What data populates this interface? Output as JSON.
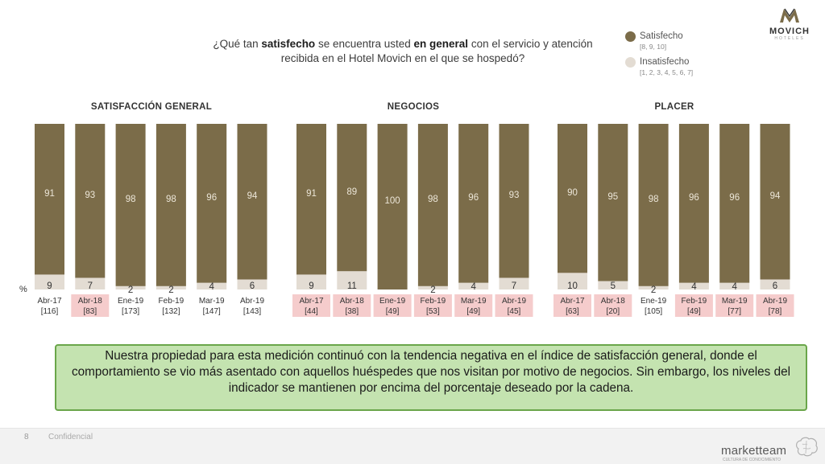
{
  "question": {
    "part1": "¿Qué tan ",
    "bold1": "satisfecho",
    "part2": " se encuentra usted ",
    "bold2": "en general",
    "part3": " con el servicio y atención recibida en el Hotel Movich en el que se hospedó?"
  },
  "legend": {
    "satisfied_label": "Satisfecho",
    "satisfied_range": "[8, 9, 10]",
    "unsatisfied_label": "Insatisfecho",
    "unsatisfied_range": "[1, 2, 3, 4, 5, 6, 7]"
  },
  "colors": {
    "satisfied": "#7b6c49",
    "unsatisfied": "#e3dcd3",
    "highlight": "#f5cccc",
    "callout_bg": "#c4e3b0",
    "callout_border": "#6aa64a"
  },
  "logo": {
    "name": "MOVICH",
    "sub": "HOTELES"
  },
  "percent_symbol": "%",
  "chart_data": [
    {
      "type": "bar",
      "title": "SATISFACCIÓN GENERAL",
      "categories": [
        "Abr-17",
        "Abr-18",
        "Ene-19",
        "Feb-19",
        "Mar-19",
        "Abr-19"
      ],
      "bases": [
        "[116]",
        "[83]",
        "[173]",
        "[132]",
        "[147]",
        "[143]"
      ],
      "highlighted": [
        false,
        true,
        false,
        false,
        false,
        false
      ],
      "series": [
        {
          "name": "Satisfecho",
          "values": [
            91,
            93,
            98,
            98,
            96,
            94
          ]
        },
        {
          "name": "Insatisfecho",
          "values": [
            9,
            7,
            2,
            2,
            4,
            6
          ]
        }
      ],
      "stacked": true,
      "ylim": [
        0,
        100
      ]
    },
    {
      "type": "bar",
      "title": "NEGOCIOS",
      "categories": [
        "Abr-17",
        "Abr-18",
        "Ene-19",
        "Feb-19",
        "Mar-19",
        "Abr-19"
      ],
      "bases": [
        "[44]",
        "[38]",
        "[49]",
        "[53]",
        "[49]",
        "[45]"
      ],
      "highlighted": [
        true,
        true,
        true,
        true,
        true,
        true
      ],
      "series": [
        {
          "name": "Satisfecho",
          "values": [
            91,
            89,
            100,
            98,
            96,
            93
          ]
        },
        {
          "name": "Insatisfecho",
          "values": [
            9,
            11,
            null,
            2,
            4,
            7
          ]
        }
      ],
      "stacked": true,
      "ylim": [
        0,
        100
      ]
    },
    {
      "type": "bar",
      "title": "PLACER",
      "categories": [
        "Abr-17",
        "Abr-18",
        "Ene-19",
        "Feb-19",
        "Mar-19",
        "Abr-19"
      ],
      "bases": [
        "[63]",
        "[20]",
        "[105]",
        "[49]",
        "[77]",
        "[78]"
      ],
      "highlighted": [
        true,
        true,
        false,
        true,
        true,
        true
      ],
      "series": [
        {
          "name": "Satisfecho",
          "values": [
            90,
            95,
            98,
            96,
            96,
            94
          ]
        },
        {
          "name": "Insatisfecho",
          "values": [
            10,
            5,
            2,
            4,
            4,
            6
          ]
        }
      ],
      "stacked": true,
      "ylim": [
        0,
        100
      ]
    }
  ],
  "callout": "Nuestra propiedad para esta medición continuó con la tendencia negativa en el índice de satisfacción general, donde el comportamiento se vio más asentado con aquellos huéspedes que nos visitan por motivo de negocios. Sin embargo, los niveles del indicador se mantienen por encima del porcentaje deseado por la cadena.",
  "footer": {
    "page": "8",
    "confidential": "Confidencial",
    "brand": "marketteam",
    "brand_sub": "CULTURA DE CONOCIMIENTO"
  }
}
